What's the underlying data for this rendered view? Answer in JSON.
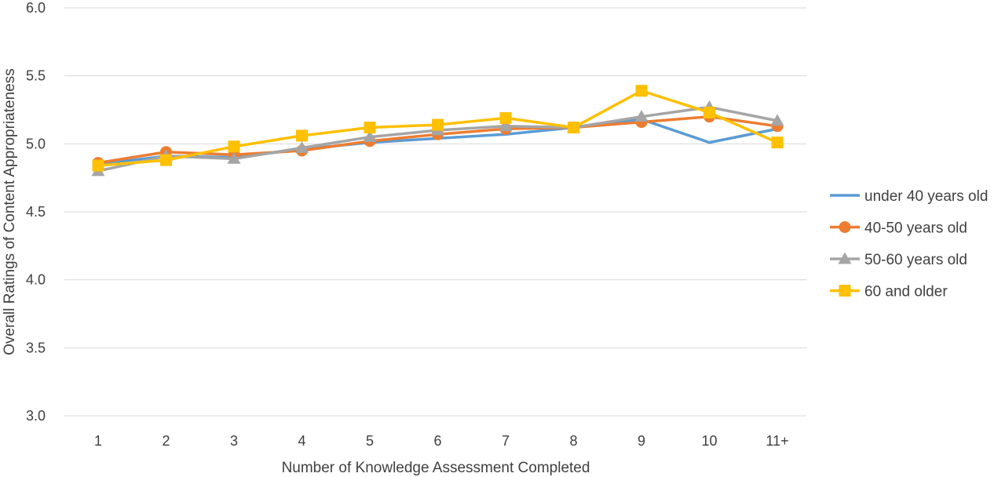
{
  "chart_data": {
    "type": "line",
    "title": "",
    "xlabel": "Number of Knowledge Assessment Completed",
    "ylabel": "Overall Ratings of Content Appropriateness",
    "categories": [
      "1",
      "2",
      "3",
      "4",
      "5",
      "6",
      "7",
      "8",
      "9",
      "10",
      "11+"
    ],
    "y_ticks": [
      "3.0",
      "3.5",
      "4.0",
      "4.5",
      "5.0",
      "5.5",
      "6.0"
    ],
    "ylim": [
      3.0,
      6.0
    ],
    "grid": true,
    "legend_position": "right",
    "series": [
      {
        "name": "under 40 years old",
        "color": "#5b9bd5",
        "marker": "none",
        "values": [
          4.85,
          4.91,
          4.9,
          4.96,
          5.01,
          5.04,
          5.07,
          5.12,
          5.18,
          5.01,
          5.11
        ]
      },
      {
        "name": "40-50 years old",
        "color": "#ed7d31",
        "marker": "circle",
        "values": [
          4.86,
          4.94,
          4.92,
          4.95,
          5.02,
          5.07,
          5.11,
          5.12,
          5.16,
          5.2,
          5.13
        ]
      },
      {
        "name": "50-60 years old",
        "color": "#a5a5a5",
        "marker": "triangle",
        "values": [
          4.8,
          4.91,
          4.89,
          4.97,
          5.05,
          5.1,
          5.13,
          5.12,
          5.2,
          5.27,
          5.17
        ]
      },
      {
        "name": "60 and older",
        "color": "#ffc000",
        "marker": "square",
        "values": [
          4.84,
          4.88,
          4.98,
          5.06,
          5.12,
          5.14,
          5.19,
          5.12,
          5.39,
          5.23,
          5.01
        ]
      }
    ]
  }
}
